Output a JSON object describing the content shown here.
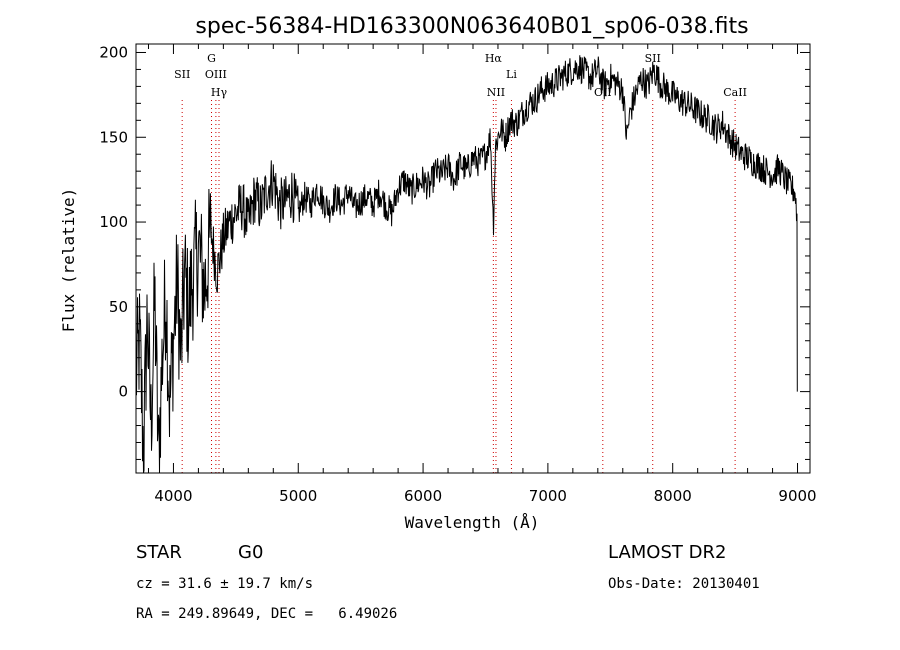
{
  "chart_data": {
    "type": "line",
    "title": "spec-56384-HD163300N063640B01_sp06-038.fits",
    "xlabel": "Wavelength (Å)",
    "ylabel": "Flux (relative)",
    "xlim": [
      3700,
      9100
    ],
    "ylim": [
      -48,
      205
    ],
    "xticks": [
      4000,
      5000,
      6000,
      7000,
      8000,
      9000
    ],
    "yticks": [
      0,
      50,
      100,
      150,
      200
    ],
    "grid": false,
    "series": [
      {
        "color": "#000000",
        "x": [
          3700,
          3730,
          3760,
          3790,
          3820,
          3850,
          3880,
          3910,
          3940,
          3970,
          4000,
          4030,
          4060,
          4090,
          4120,
          4150,
          4200,
          4250,
          4300,
          4350,
          4400,
          4450,
          4500,
          4550,
          4600,
          4650,
          4700,
          4750,
          4800,
          4850,
          4900,
          4950,
          5000,
          5050,
          5100,
          5150,
          5200,
          5250,
          5300,
          5350,
          5400,
          5450,
          5500,
          5550,
          5600,
          5650,
          5700,
          5750,
          5800,
          5850,
          5900,
          5950,
          6000,
          6050,
          6100,
          6150,
          6200,
          6250,
          6300,
          6350,
          6400,
          6450,
          6500,
          6540,
          6563,
          6580,
          6620,
          6660,
          6700,
          6750,
          6800,
          6850,
          6900,
          6950,
          7000,
          7050,
          7100,
          7150,
          7200,
          7250,
          7300,
          7350,
          7400,
          7450,
          7500,
          7550,
          7600,
          7630,
          7660,
          7700,
          7750,
          7800,
          7850,
          7900,
          7950,
          8000,
          8050,
          8100,
          8150,
          8200,
          8250,
          8300,
          8350,
          8400,
          8450,
          8500,
          8550,
          8600,
          8650,
          8700,
          8750,
          8800,
          8850,
          8900,
          8950,
          8980,
          8995,
          9000
        ],
        "y": [
          10,
          30,
          -35,
          45,
          -20,
          55,
          -40,
          20,
          60,
          -10,
          30,
          65,
          20,
          70,
          45,
          65,
          85,
          60,
          95,
          70,
          90,
          100,
          105,
          110,
          98,
          115,
          108,
          120,
          125,
          110,
          112,
          118,
          105,
          115,
          110,
          120,
          112,
          108,
          115,
          110,
          118,
          108,
          112,
          115,
          110,
          118,
          110,
          105,
          120,
          125,
          118,
          122,
          125,
          120,
          130,
          128,
          133,
          125,
          135,
          130,
          138,
          135,
          140,
          150,
          98,
          145,
          155,
          150,
          160,
          158,
          165,
          170,
          172,
          178,
          180,
          182,
          185,
          188,
          190,
          192,
          188,
          185,
          190,
          180,
          185,
          182,
          178,
          150,
          165,
          175,
          185,
          180,
          190,
          182,
          178,
          175,
          172,
          170,
          168,
          165,
          162,
          160,
          155,
          158,
          150,
          145,
          140,
          138,
          135,
          133,
          130,
          128,
          132,
          125,
          120,
          118,
          105,
          0
        ]
      }
    ],
    "line_markers": [
      {
        "label": "SII",
        "x": 4070,
        "label_row": 1
      },
      {
        "label": "G",
        "x": 4305,
        "label_row": 0
      },
      {
        "label": "OIII",
        "x": 4340,
        "label_row": 1
      },
      {
        "label": "Hγ",
        "x": 4365,
        "label_row": 2
      },
      {
        "label": "Hα",
        "x": 6563,
        "label_row": 0
      },
      {
        "label": "NII",
        "x": 6584,
        "label_row": 2
      },
      {
        "label": "Li",
        "x": 6708,
        "label_row": 1
      },
      {
        "label": "OII",
        "x": 7440,
        "label_row": 2
      },
      {
        "label": "SII",
        "x": 7840,
        "label_row": 0
      },
      {
        "label": "CaII",
        "x": 8500,
        "label_row": 2
      }
    ]
  },
  "footer": {
    "object_type": "STAR",
    "subclass": "G0",
    "survey": "LAMOST DR2",
    "redshift": "cz = 31.6 ± 19.7 km/s",
    "obs_date": "Obs-Date: 20130401",
    "coords": "RA = 249.89649, DEC =   6.49026"
  },
  "colors": {
    "line_marker": "#cc0000",
    "spectrum": "#000000"
  }
}
